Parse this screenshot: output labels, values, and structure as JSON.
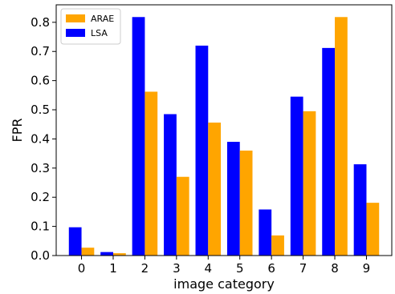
{
  "chart_data": {
    "type": "bar",
    "categories": [
      "0",
      "1",
      "2",
      "3",
      "4",
      "5",
      "6",
      "7",
      "8",
      "9"
    ],
    "series": [
      {
        "name": "LSA",
        "color": "#0000ff",
        "values": [
          0.097,
          0.012,
          0.818,
          0.485,
          0.72,
          0.39,
          0.158,
          0.545,
          0.712,
          0.313
        ]
      },
      {
        "name": "ARAE",
        "color": "#ffa500",
        "values": [
          0.027,
          0.008,
          0.562,
          0.27,
          0.456,
          0.36,
          0.069,
          0.495,
          0.818,
          0.181
        ]
      }
    ],
    "bar_order": [
      "LSA",
      "ARAE"
    ],
    "legend_order": [
      "ARAE",
      "LSA"
    ],
    "xlabel": "image category",
    "ylabel": "FPR",
    "ylim": [
      0,
      0.86
    ],
    "yticks": [
      "0.0",
      "0.1",
      "0.2",
      "0.3",
      "0.4",
      "0.5",
      "0.6",
      "0.7",
      "0.8"
    ],
    "grid": false,
    "legend_position": "top-left"
  }
}
